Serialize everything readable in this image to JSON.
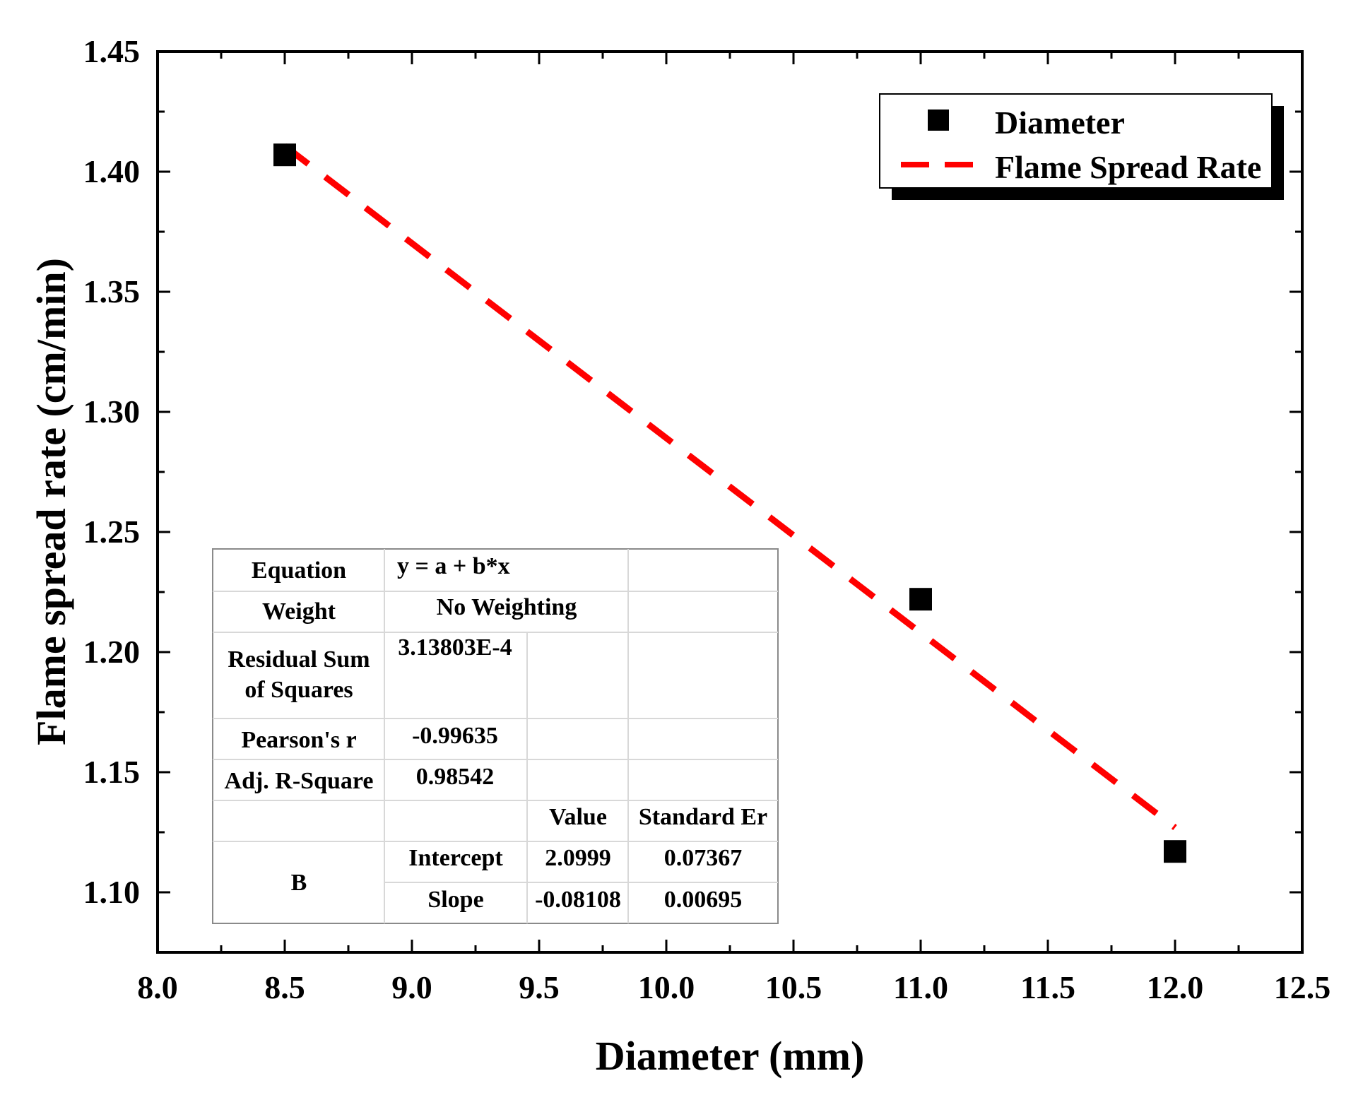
{
  "chart_data": {
    "type": "scatter",
    "xlabel": "Diameter (mm)",
    "ylabel": "Flame spread rate (cm/min)",
    "xlim": [
      8.0,
      12.5
    ],
    "ylim": [
      1.075,
      1.45
    ],
    "xticks": [
      8.0,
      8.5,
      9.0,
      9.5,
      10.0,
      10.5,
      11.0,
      11.5,
      12.0,
      12.5
    ],
    "xtick_labels": [
      "8.0",
      "8.5",
      "9.0",
      "9.5",
      "10.0",
      "10.5",
      "11.0",
      "11.5",
      "12.0",
      "12.5"
    ],
    "yticks": [
      1.1,
      1.15,
      1.2,
      1.25,
      1.3,
      1.35,
      1.4,
      1.45
    ],
    "ytick_labels": [
      "1.10",
      "1.15",
      "1.20",
      "1.25",
      "1.30",
      "1.35",
      "1.40",
      "1.45"
    ],
    "series": [
      {
        "name": "Diameter",
        "kind": "points",
        "color": "#000000",
        "x": [
          8.5,
          11.0,
          12.0
        ],
        "y": [
          1.407,
          1.222,
          1.117
        ]
      },
      {
        "name": "Flame Spread Rate",
        "kind": "fit-line",
        "color": "#ff0000",
        "x": [
          8.5,
          12.0
        ],
        "y": [
          1.41072,
          1.12694
        ]
      }
    ],
    "legend": {
      "position": "top-right",
      "entries": [
        "Diameter",
        "Flame Spread Rate"
      ]
    },
    "fit_table": {
      "equation_label": "Equation",
      "equation": "y = a + b*x",
      "weight_label": "Weight",
      "weight": "No Weighting",
      "rss_label_line1": "Residual Sum",
      "rss_label_line2": "of Squares",
      "rss": "3.13803E-4",
      "pearson_label": "Pearson's r",
      "pearson": "-0.99635",
      "adj_r2_label": "Adj. R-Square",
      "adj_r2": "0.98542",
      "value_header": "Value",
      "stderr_header": "Standard Er",
      "group": "B",
      "intercept_label": "Intercept",
      "intercept_value": "2.0999",
      "intercept_stderr": "0.07367",
      "slope_label": "Slope",
      "slope_value": "-0.08108",
      "slope_stderr": "0.00695"
    }
  }
}
